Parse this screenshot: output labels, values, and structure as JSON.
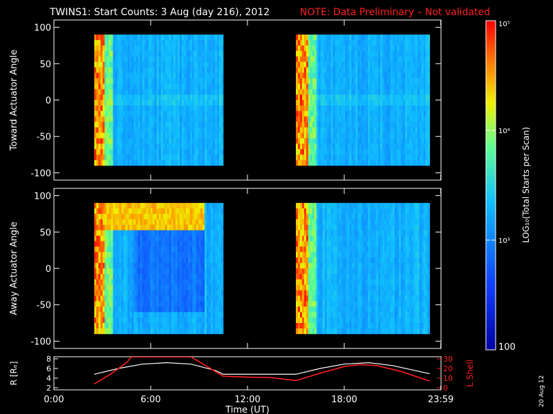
{
  "header": {
    "title": "TWINS1: Start Counts:  3 Aug (day 216), 2012",
    "note": "NOTE: Data Preliminary – Not validated",
    "note_color": "#ff2020"
  },
  "date_stamp": "20 Aug 12",
  "chart_data": [
    {
      "type": "heatmap",
      "name": "toward",
      "ylabel": "Toward Actuator Angle",
      "ylim": [
        -110,
        110
      ],
      "yticks": [
        100,
        50,
        0,
        -50,
        -100
      ],
      "xlim_hours": [
        0,
        24
      ],
      "coverage_hours": [
        [
          2.5,
          10.5
        ],
        [
          15.0,
          23.3
        ]
      ],
      "angle_range": [
        -90,
        90
      ],
      "description_values": "log10 counts; bright (1e4-1e5) at pass start, ~1e3 elsewhere"
    },
    {
      "type": "heatmap",
      "name": "away",
      "ylabel": "Away Actuator Angle",
      "ylim": [
        -110,
        110
      ],
      "yticks": [
        100,
        50,
        0,
        -50,
        -100
      ],
      "xlim_hours": [
        0,
        24
      ],
      "coverage_hours": [
        [
          2.5,
          10.5
        ],
        [
          15.0,
          23.3
        ]
      ],
      "angle_range": [
        -90,
        90
      ]
    },
    {
      "type": "line",
      "name": "orbit",
      "ylabel_left": "R [Rₑ]",
      "ylabel_right": "L Shell",
      "ylim_left": [
        2,
        8
      ],
      "yticks_left": [
        8,
        6,
        4,
        2
      ],
      "ylim_right": [
        0,
        30
      ],
      "yticks_right": [
        30,
        20,
        10,
        0
      ],
      "series": [
        {
          "name": "R",
          "color": "#ffffff",
          "x": [
            2.5,
            4,
            5.5,
            7,
            8.5,
            10,
            10.5,
            12,
            14,
            15,
            16.5,
            18,
            19.5,
            21,
            23.3
          ],
          "y": [
            4.8,
            6.0,
            6.9,
            7.2,
            6.9,
            5.6,
            4.8,
            4.8,
            4.8,
            4.8,
            6.0,
            6.9,
            7.2,
            6.6,
            4.9
          ]
        },
        {
          "name": "L Shell",
          "color": "#ff2020",
          "x": [
            2.5,
            3.5,
            4.5,
            4.8,
            8.5,
            9.5,
            10.5,
            12,
            13.5,
            15,
            16.5,
            18,
            19,
            20,
            21.5,
            23.3
          ],
          "y": [
            4,
            14,
            26,
            32,
            32,
            22,
            12,
            11,
            10.5,
            7.5,
            15,
            22,
            24,
            23,
            17,
            7
          ]
        }
      ],
      "xticks": [
        "0:00",
        "6:00",
        "12:00",
        "18:00",
        "23:59"
      ],
      "xtick_hours": [
        0,
        6,
        12,
        18,
        23.983
      ],
      "xlabel": "Time (UT)"
    }
  ],
  "colorbar": {
    "label": "LOG₁₀(Total Starts per Scan)",
    "ticks": [
      "10⁵",
      "10⁴",
      "10³",
      "100"
    ],
    "tick_values_log": [
      5,
      4,
      3,
      2
    ]
  }
}
